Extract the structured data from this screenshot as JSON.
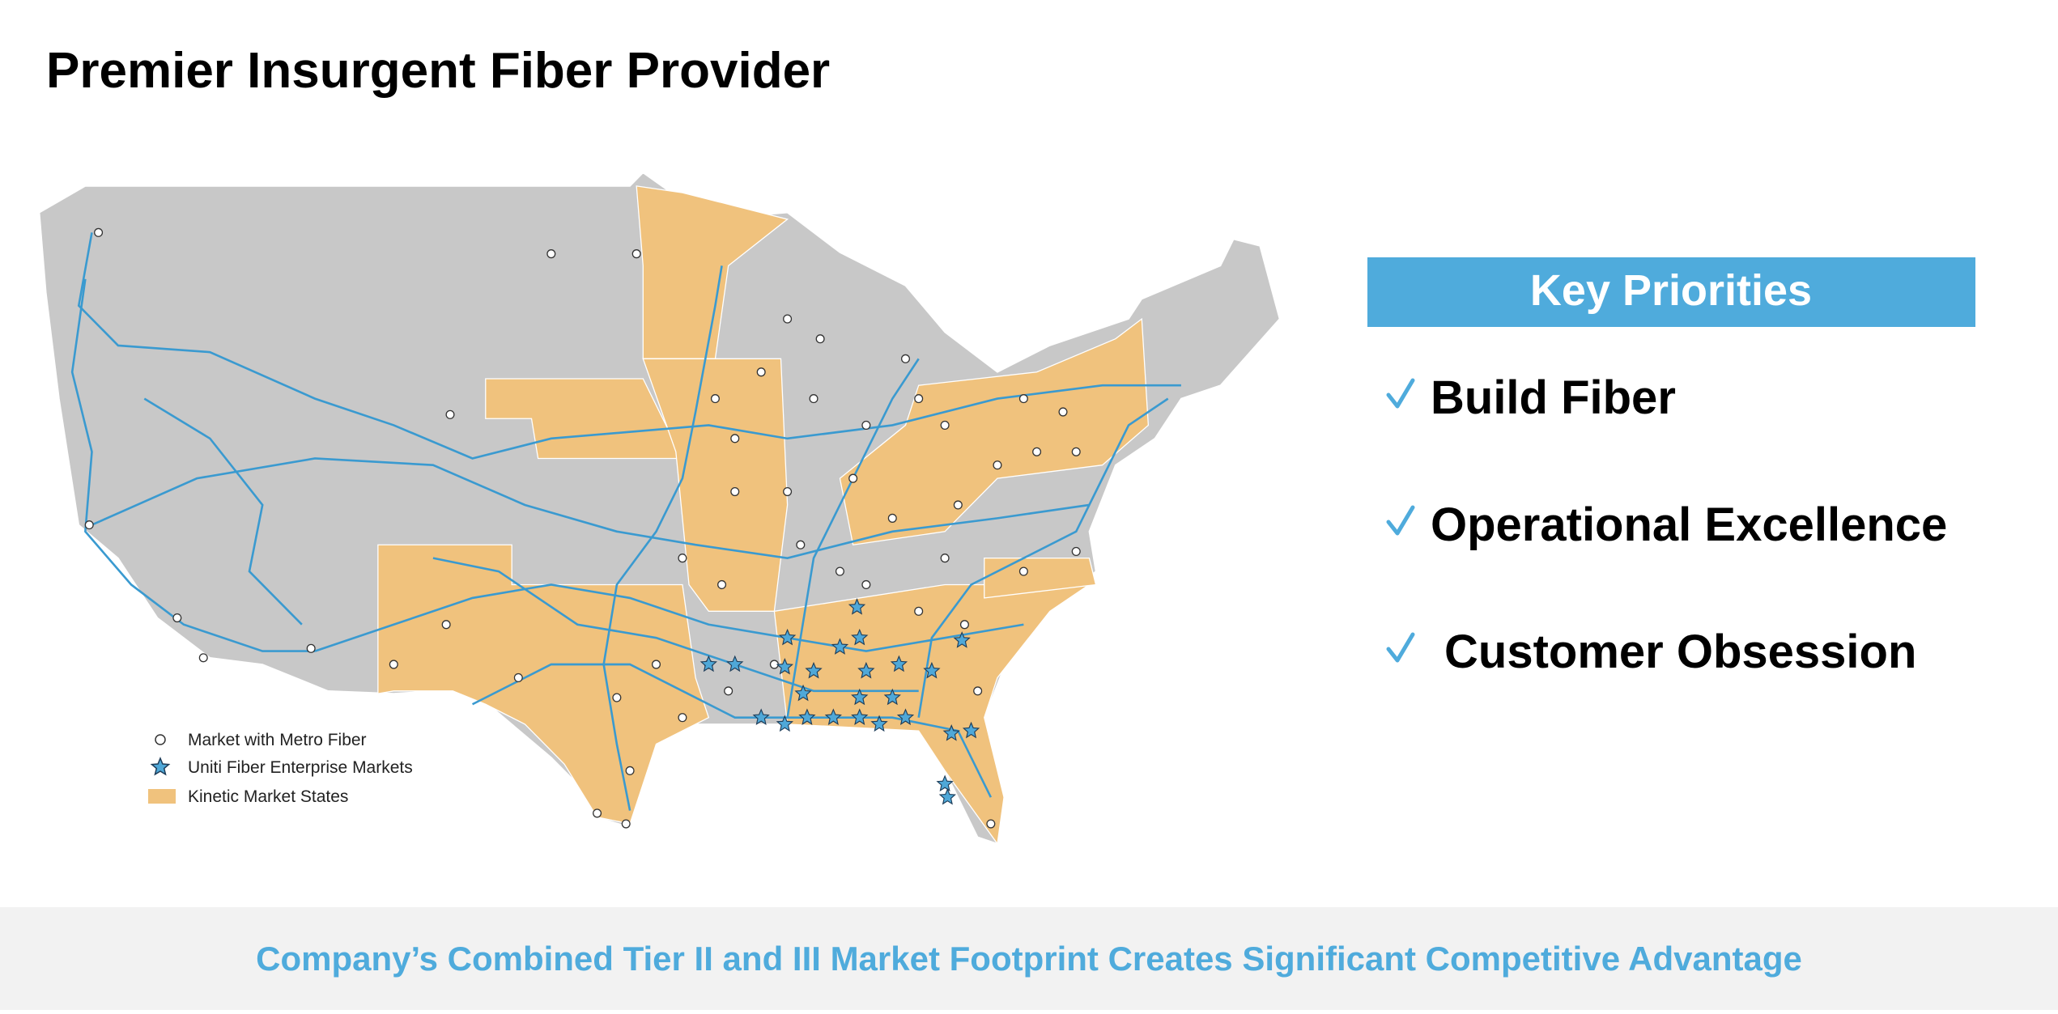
{
  "header": {
    "title": "Premier Insurgent Fiber Provider"
  },
  "map": {
    "legend": [
      {
        "label": "Market with Metro Fiber"
      },
      {
        "label": "Uniti Fiber Enterprise Markets"
      },
      {
        "label": "Kinetic Market States"
      }
    ]
  },
  "key_priorities": {
    "title": "Key Priorities",
    "items": [
      "Build Fiber",
      "Operational Excellence",
      "Customer Obsession"
    ]
  },
  "footer": {
    "text": "Company’s Combined Tier II and III Market Footprint Creates Significant Competitive Advantage"
  }
}
